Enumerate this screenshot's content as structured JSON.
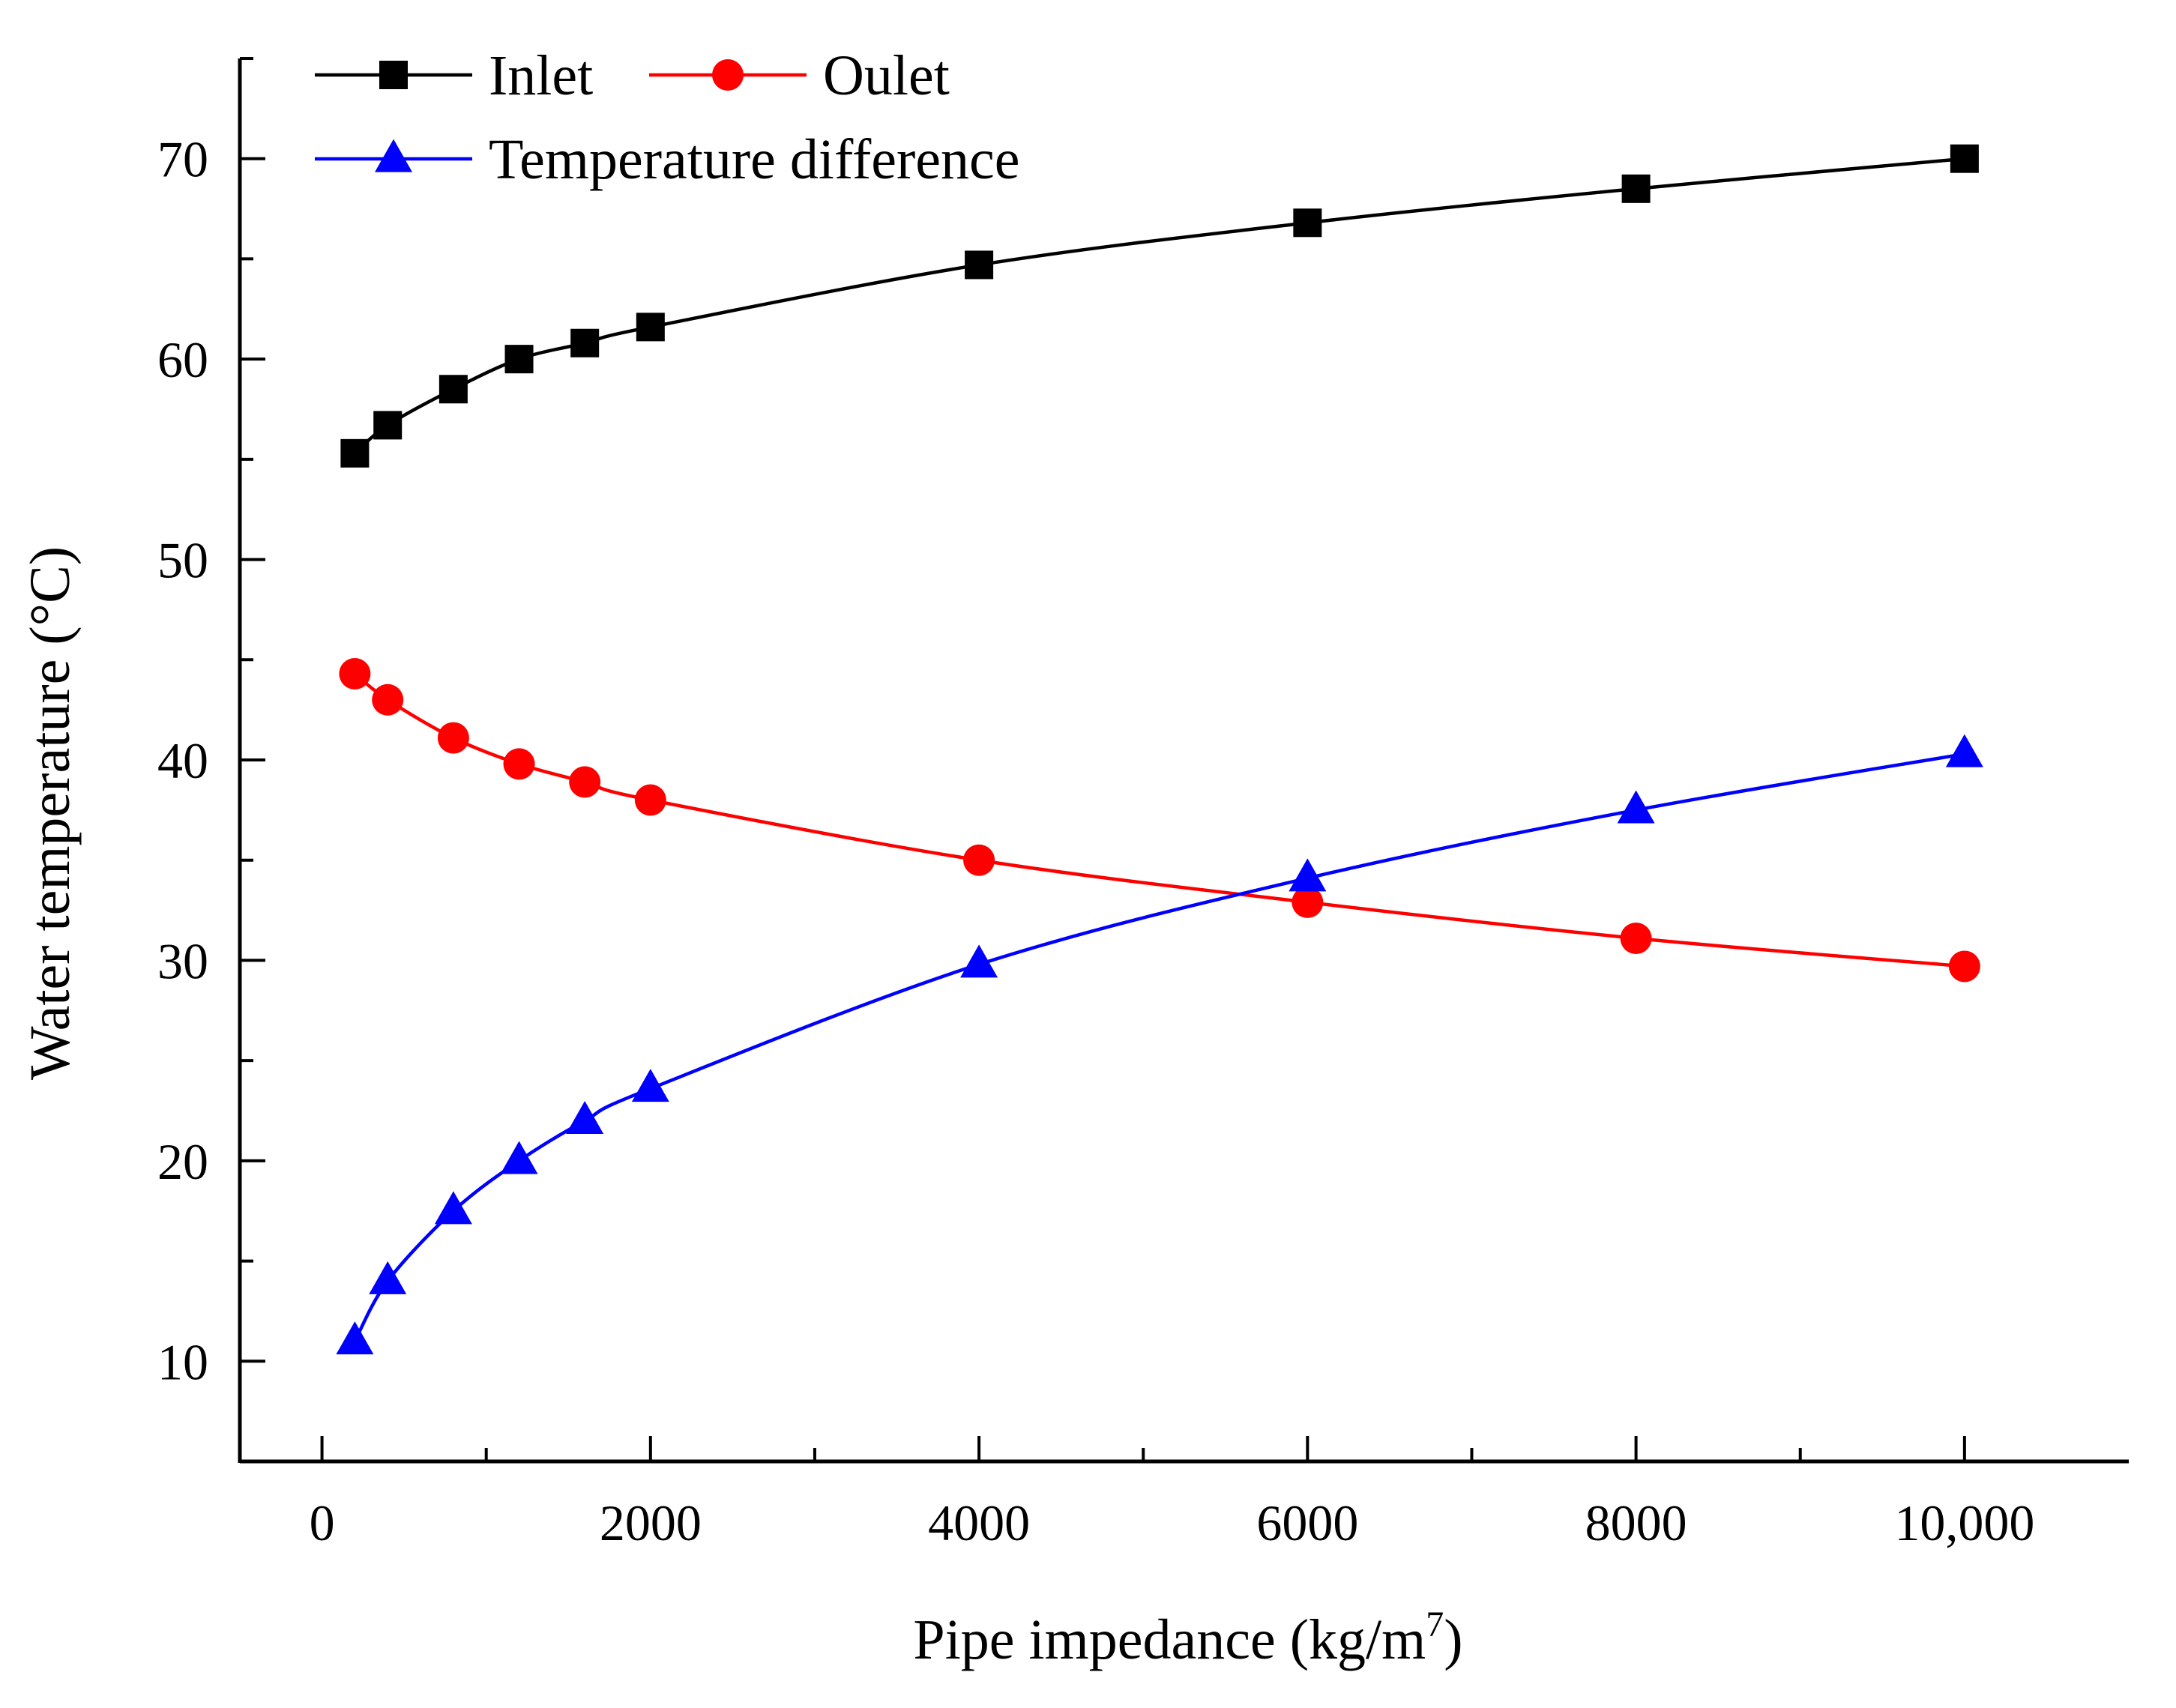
{
  "chart_data": {
    "type": "line",
    "title": "",
    "xlabel": "Pipe impedance (kg/m",
    "xlabel_sup": "7",
    "xlabel_end": ")",
    "ylabel": "Water temperature  (°C)",
    "xlim": [
      -500,
      11000
    ],
    "ylim": [
      5,
      75
    ],
    "x_ticks": [
      0,
      2000,
      4000,
      6000,
      8000,
      10000
    ],
    "x_tick_labels": [
      "0",
      "2000",
      "4000",
      "6000",
      "8000",
      "10,000"
    ],
    "x_minor_ticks": [
      1000,
      3000,
      5000,
      7000,
      9000
    ],
    "y_ticks": [
      10,
      20,
      30,
      40,
      50,
      60,
      70
    ],
    "y_tick_labels": [
      "10",
      "20",
      "30",
      "40",
      "50",
      "60",
      "70"
    ],
    "y_minor_ticks": [
      15,
      25,
      35,
      45,
      55,
      65,
      75
    ],
    "grid": false,
    "legend_position": "top-left",
    "x": [
      200,
      400,
      800,
      1200,
      1600,
      2000,
      4000,
      6000,
      8000,
      10000
    ],
    "series": [
      {
        "name": "Inlet",
        "color": "#000000",
        "marker": "square",
        "values": [
          55.3,
          56.7,
          58.5,
          60.0,
          60.8,
          61.6,
          64.7,
          66.8,
          68.5,
          70.0
        ]
      },
      {
        "name": "Oulet",
        "color": "#ff0000",
        "marker": "circle",
        "values": [
          44.3,
          43.0,
          41.1,
          39.8,
          38.9,
          38.0,
          35.0,
          32.9,
          31.1,
          29.7
        ]
      },
      {
        "name": "Temperature difference",
        "color": "#0000ff",
        "marker": "triangle",
        "values": [
          11.0,
          14.0,
          17.5,
          20.0,
          22.0,
          23.6,
          29.8,
          34.1,
          37.5,
          40.3
        ]
      }
    ]
  }
}
